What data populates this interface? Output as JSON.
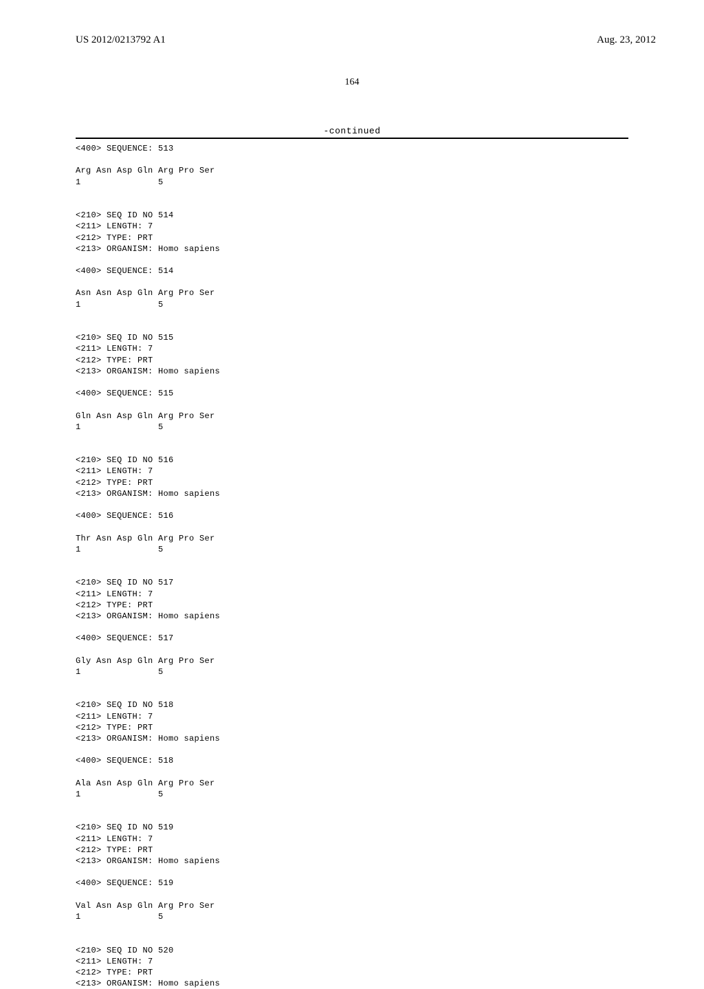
{
  "header": {
    "pub_number": "US 2012/0213792 A1",
    "pub_date": "Aug. 23, 2012"
  },
  "page_number": "164",
  "continued_label": "-continued",
  "entries": [
    {
      "sequence_header": "<400> SEQUENCE: 513",
      "peptide": "Arg Asn Asp Gln Arg Pro Ser",
      "positions": "1               5"
    },
    {
      "seq_id": "<210> SEQ ID NO 514",
      "length": "<211> LENGTH: 7",
      "type": "<212> TYPE: PRT",
      "organism": "<213> ORGANISM: Homo sapiens",
      "sequence_header": "<400> SEQUENCE: 514",
      "peptide": "Asn Asn Asp Gln Arg Pro Ser",
      "positions": "1               5"
    },
    {
      "seq_id": "<210> SEQ ID NO 515",
      "length": "<211> LENGTH: 7",
      "type": "<212> TYPE: PRT",
      "organism": "<213> ORGANISM: Homo sapiens",
      "sequence_header": "<400> SEQUENCE: 515",
      "peptide": "Gln Asn Asp Gln Arg Pro Ser",
      "positions": "1               5"
    },
    {
      "seq_id": "<210> SEQ ID NO 516",
      "length": "<211> LENGTH: 7",
      "type": "<212> TYPE: PRT",
      "organism": "<213> ORGANISM: Homo sapiens",
      "sequence_header": "<400> SEQUENCE: 516",
      "peptide": "Thr Asn Asp Gln Arg Pro Ser",
      "positions": "1               5"
    },
    {
      "seq_id": "<210> SEQ ID NO 517",
      "length": "<211> LENGTH: 7",
      "type": "<212> TYPE: PRT",
      "organism": "<213> ORGANISM: Homo sapiens",
      "sequence_header": "<400> SEQUENCE: 517",
      "peptide": "Gly Asn Asp Gln Arg Pro Ser",
      "positions": "1               5"
    },
    {
      "seq_id": "<210> SEQ ID NO 518",
      "length": "<211> LENGTH: 7",
      "type": "<212> TYPE: PRT",
      "organism": "<213> ORGANISM: Homo sapiens",
      "sequence_header": "<400> SEQUENCE: 518",
      "peptide": "Ala Asn Asp Gln Arg Pro Ser",
      "positions": "1               5"
    },
    {
      "seq_id": "<210> SEQ ID NO 519",
      "length": "<211> LENGTH: 7",
      "type": "<212> TYPE: PRT",
      "organism": "<213> ORGANISM: Homo sapiens",
      "sequence_header": "<400> SEQUENCE: 519",
      "peptide": "Val Asn Asp Gln Arg Pro Ser",
      "positions": "1               5"
    },
    {
      "seq_id": "<210> SEQ ID NO 520",
      "length": "<211> LENGTH: 7",
      "type": "<212> TYPE: PRT",
      "organism": "<213> ORGANISM: Homo sapiens"
    }
  ]
}
